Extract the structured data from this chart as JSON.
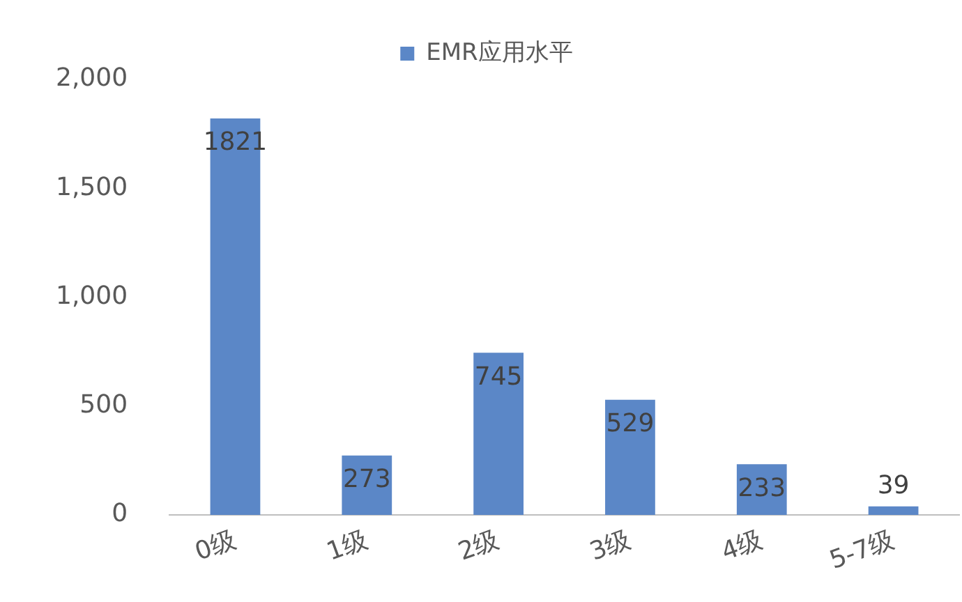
{
  "chart_data": {
    "type": "bar",
    "categories": [
      "0级",
      "1级",
      "2级",
      "3级",
      "4级",
      "5-7级"
    ],
    "series": [
      {
        "name": "EMR应用水平",
        "color": "#5b87c7",
        "values": [
          1821,
          273,
          745,
          529,
          233,
          39
        ]
      }
    ],
    "ylim": [
      0,
      2000
    ],
    "yticks": [
      {
        "value": 0,
        "label": "0"
      },
      {
        "value": 500,
        "label": "500"
      },
      {
        "value": 1000,
        "label": "1,000"
      },
      {
        "value": 1500,
        "label": "1,500"
      },
      {
        "value": 2000,
        "label": "2,000"
      }
    ],
    "grid": false,
    "legend": "top",
    "data_labels": true
  }
}
